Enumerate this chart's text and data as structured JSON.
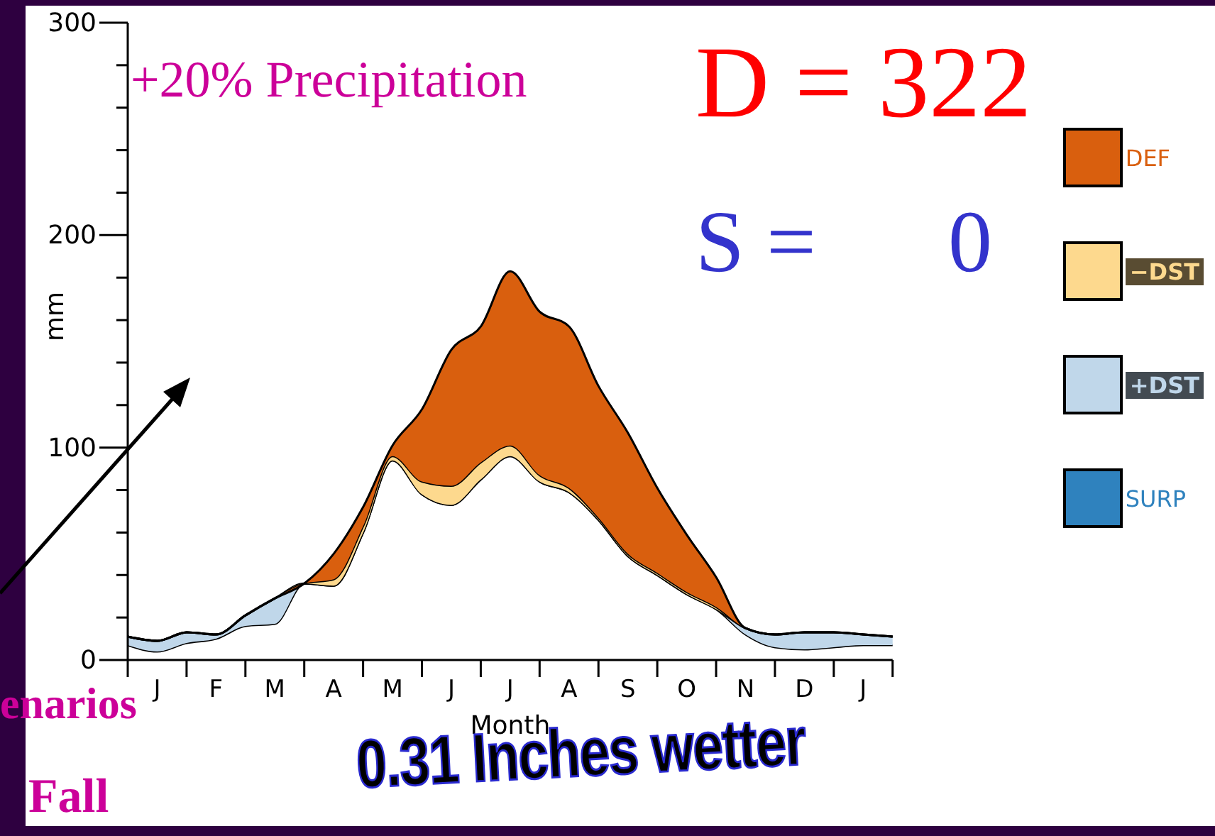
{
  "chart_data": {
    "type": "area",
    "stacked": true,
    "xlabel": "Month",
    "ylabel": "mm",
    "categories": [
      null,
      "J",
      null,
      "F",
      null,
      "M",
      null,
      "A",
      null,
      "M",
      null,
      "J",
      null,
      "J",
      null,
      "A",
      null,
      "S",
      null,
      "O",
      null,
      "N",
      null,
      "D",
      null,
      "J",
      null
    ],
    "series": [
      {
        "color": "#ffffff",
        "values": [
          7,
          4,
          8,
          10,
          16,
          17,
          36,
          35,
          60,
          94,
          78,
          73,
          85,
          96,
          84,
          79,
          66,
          49,
          40,
          31,
          24,
          12,
          6,
          5,
          6,
          7,
          7
        ]
      },
      {
        "name": "+DST",
        "color": "#c0d7ea",
        "values": [
          4,
          5,
          5,
          2,
          5,
          12,
          0,
          0,
          0,
          0,
          0,
          0,
          0,
          0,
          0,
          0,
          0,
          0,
          0,
          0,
          0,
          3,
          6,
          8,
          7,
          5,
          4
        ]
      },
      {
        "name": "−DST",
        "color": "#fdd98e",
        "values": [
          0,
          0,
          0,
          0,
          0,
          0,
          0,
          3,
          3,
          2,
          6,
          9,
          8,
          5,
          3,
          2,
          1,
          1,
          1,
          1,
          1,
          0,
          0,
          0,
          0,
          0,
          0
        ]
      },
      {
        "name": "DEF",
        "color": "#d95f0e",
        "values": [
          0,
          0,
          0,
          0,
          0,
          0,
          0,
          12,
          9,
          5,
          34,
          64,
          64,
          82,
          77,
          76,
          62,
          57,
          40,
          27,
          14,
          0,
          0,
          0,
          0,
          0,
          0
        ]
      },
      {
        "name": "SURP",
        "color": "#2f82be",
        "values": [
          null,
          null,
          null,
          null,
          null,
          null,
          null,
          null,
          null,
          null,
          null,
          null,
          null,
          null,
          null,
          null,
          null,
          null,
          null,
          null,
          null,
          null,
          null,
          null,
          null,
          null,
          null
        ]
      }
    ],
    "ylim": [
      0,
      300
    ],
    "yticks": [
      0,
      {
        "value": 20,
        "label": null
      },
      {
        "value": 40,
        "label": null
      },
      {
        "value": 60,
        "label": null
      },
      {
        "value": 80,
        "label": null
      },
      100,
      {
        "value": 120,
        "label": null
      },
      {
        "value": 140,
        "label": null
      },
      {
        "value": 160,
        "label": null
      },
      {
        "value": 180,
        "label": null
      },
      200,
      {
        "value": 220,
        "label": null
      },
      {
        "value": 240,
        "label": null
      },
      {
        "value": 260,
        "label": null
      },
      {
        "value": 280,
        "label": null
      },
      300
    ],
    "legend": "right",
    "annotations": [
      "+20% Precipitation",
      "D = 322",
      "S =      0",
      "0.31 Inches wetter",
      "enarios",
      "Fall"
    ]
  }
}
